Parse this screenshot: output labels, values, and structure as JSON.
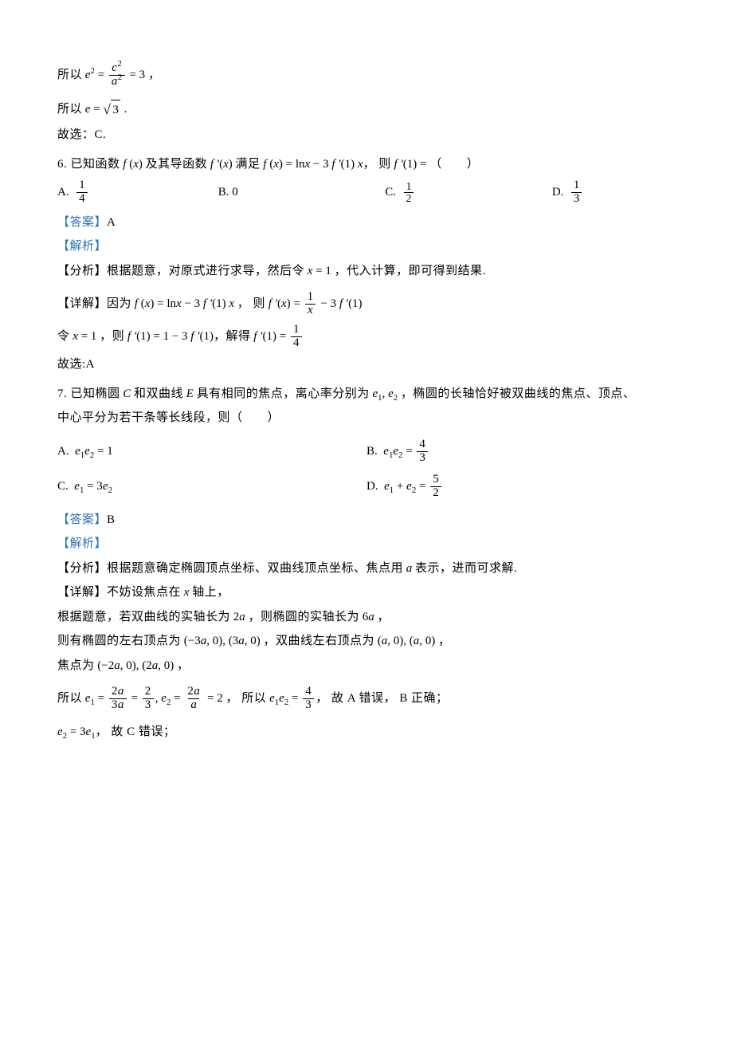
{
  "colors": {
    "text": "#000000",
    "accent": "#2e74b5",
    "background": "#ffffff",
    "rule": "#000000"
  },
  "fonts": {
    "body": "SimSun",
    "math": "Cambria Math",
    "body_size_pt": 11,
    "math_size_pt": 11
  },
  "block_prefix": {
    "so_eq": "所以",
    "e2_frac": {
      "num": "c²",
      "den": "a²"
    },
    "eq3_text": "= 3 ，",
    "so_e": "所以",
    "e_eq_sqrt3": "e = √3 .",
    "choose_c": "故选：C."
  },
  "q6": {
    "number": "6.",
    "stem_pre": "已知函数",
    "fx": "f(x)",
    "stem_mid1": "及其导函数",
    "fpx": "f′(x)",
    "stem_mid2": "满足",
    "eq_lhs": "f(x) = ln x − 3 f′(1) x",
    "stem_mid3": "， 则",
    "fprime1_eq": "f′(1) =",
    "stem_tail": "（　　）",
    "options": {
      "a_label": "A.",
      "a_val": {
        "num": "1",
        "den": "4"
      },
      "b_label": "B.",
      "b_val": "0",
      "c_label": "C.",
      "c_val": {
        "num": "1",
        "den": "2"
      },
      "d_label": "D.",
      "d_val": {
        "num": "1",
        "den": "3"
      }
    },
    "answer_tag": "【答案】",
    "answer": "A",
    "analysis_tag": "【解析】",
    "analysis_h1": "【分析】",
    "analysis_l1": "根据题意，对原式进行求导，然后令",
    "x_eq_1": "x = 1",
    "analysis_l1_b": "，代入计算，即可得到结果.",
    "detail_h": "【详解】",
    "detail_l1_a": "因为",
    "detail_eq1": "f(x) = ln x − 3 f′(1) x",
    "detail_l1_b": "， 则",
    "detail_eq2_lhs": "f′(x) =",
    "detail_eq2_frac": {
      "num": "1",
      "den": "x"
    },
    "detail_eq2_tail": "− 3 f′(1)",
    "detail_l2_a": "令",
    "detail_l2_b": "，则",
    "detail_eq3": "f′(1) = 1 − 3 f′(1)",
    "detail_l2_c": "，解得",
    "detail_eq4_lhs": "f′(1) =",
    "detail_eq4_frac": {
      "num": "1",
      "den": "4"
    },
    "choice": "故选:A"
  },
  "q7": {
    "number": "7.",
    "stem_a": "已知椭圆",
    "C": "C",
    "stem_b": "和双曲线",
    "E": "E",
    "stem_c": "具有相同的焦点，离心率分别为",
    "e12": "e₁, e₂",
    "stem_d": "，椭圆的长轴恰好被双曲线的焦点、顶点、",
    "stem_line2": "中心平分为若干条等长线段，则（　　）",
    "options": {
      "a_label": "A.",
      "a_expr": "e₁e₂ = 1",
      "b_label": "B.",
      "b_expr_lhs": "e₁e₂ =",
      "b_frac": {
        "num": "4",
        "den": "3"
      },
      "c_label": "C.",
      "c_expr": "e₁ = 3e₂",
      "d_label": "D.",
      "d_expr_lhs": "e₁ + e₂ =",
      "d_frac": {
        "num": "5",
        "den": "2"
      }
    },
    "answer_tag": "【答案】",
    "answer": "B",
    "analysis_tag": "【解析】",
    "analysis_h1": "【分析】",
    "analysis_l1": "根据题意确定椭圆顶点坐标、双曲线顶点坐标、焦点用",
    "a_var": "a",
    "analysis_l1_b": "表示，进而可求解.",
    "detail_h": "【详解】",
    "detail_l1_a": "不妨设焦点在",
    "x_var": "x",
    "detail_l1_b": "轴上，",
    "detail_l2_a": "根据题意，若双曲线的实轴长为",
    "two_a": "2a",
    "detail_l2_b": "，则椭圆的实轴长为",
    "six_a": "6a",
    "detail_l2_c": "，",
    "detail_l3_a": "则有椭圆的左右顶点为",
    "ellipse_v": "(−3a, 0), (3a, 0)",
    "detail_l3_b": "，双曲线左右顶点为",
    "hyper_v": "(a, 0), (a, 0)",
    "detail_l3_c": "，",
    "detail_l4_a": "焦点为",
    "foci": "(−2a, 0), (2a, 0)",
    "detail_l4_b": "，",
    "detail_l5_a": "所以",
    "e1_eq_lhs": "e₁ =",
    "e1_frac1": {
      "num": "2a",
      "den": "3a"
    },
    "eq_sign1": "=",
    "e1_frac2": {
      "num": "2",
      "den": "3"
    },
    "e2_eq_lhs": ", e₂ =",
    "e2_frac": {
      "num": "2a",
      "den": "a"
    },
    "eq2_tail": "= 2",
    "detail_l5_b": "， 所以",
    "prod_lhs": "e₁e₂ =",
    "prod_frac": {
      "num": "4",
      "den": "3"
    },
    "detail_l5_c": "， 故 A 错误， B 正确；",
    "detail_l6_a": "e₂ = 3e₁",
    "detail_l6_b": "， 故 C 错误；"
  }
}
